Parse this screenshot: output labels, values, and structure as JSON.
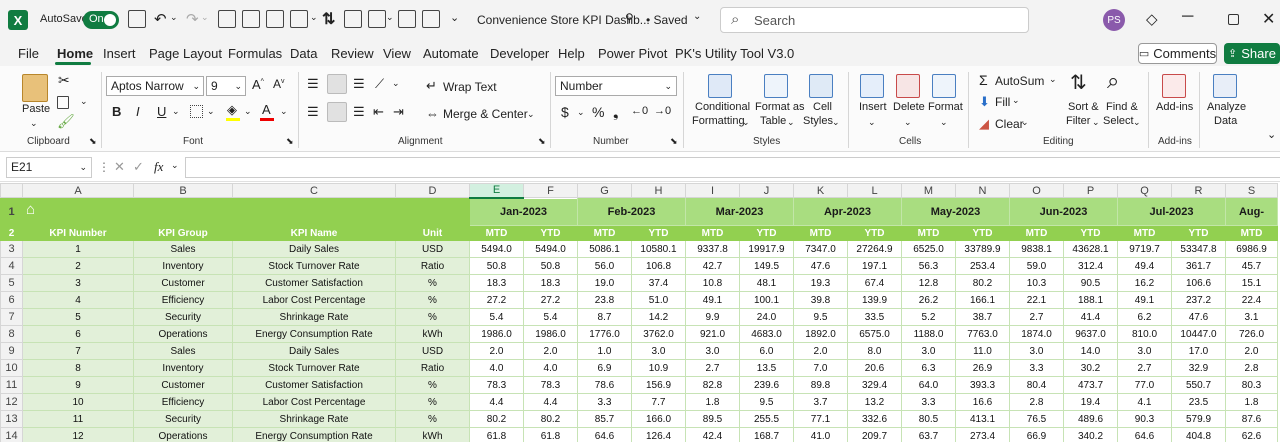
{
  "app": {
    "logo": "X",
    "autosave_label": "AutoSave",
    "toggle_state": "On",
    "doc_title": "Convenience Store KPI Dashb...",
    "saved_status": "• Saved",
    "search_placeholder": "Search",
    "avatar_initials": "PS"
  },
  "tabs": [
    "File",
    "Home",
    "Insert",
    "Page Layout",
    "Formulas",
    "Data",
    "Review",
    "View",
    "Automate",
    "Developer",
    "Help",
    "Power Pivot",
    "PK's Utility Tool V3.0"
  ],
  "comments_label": "Comments",
  "share_label": "Share",
  "ribbon": {
    "clipboard": {
      "paste": "Paste",
      "group": "Clipboard"
    },
    "font": {
      "name": "Aptos Narrow",
      "size": "9",
      "group": "Font"
    },
    "alignment": {
      "wrap": "Wrap Text",
      "merge": "Merge & Center",
      "group": "Alignment"
    },
    "number": {
      "format": "Number",
      "group": "Number"
    },
    "styles": {
      "cond1": "Conditional",
      "cond2": "Formatting",
      "fmt1": "Format as",
      "fmt2": "Table",
      "cell1": "Cell",
      "cell2": "Styles",
      "group": "Styles"
    },
    "cells": {
      "insert": "Insert",
      "delete": "Delete",
      "format": "Format",
      "group": "Cells"
    },
    "editing": {
      "autosum": "AutoSum",
      "fill": "Fill",
      "clear": "Clear",
      "sort1": "Sort &",
      "sort2": "Filter",
      "find1": "Find &",
      "find2": "Select",
      "group": "Editing"
    },
    "addins": {
      "label": "Add-ins",
      "group": "Add-ins"
    },
    "analyze": {
      "l1": "Analyze",
      "l2": "Data"
    }
  },
  "formula_bar": {
    "cell_ref": "E21",
    "fx": "fx",
    "value": ""
  },
  "grid": {
    "columns": [
      "A",
      "B",
      "C",
      "D",
      "E",
      "F",
      "G",
      "H",
      "I",
      "J",
      "K",
      "L",
      "M",
      "N",
      "O",
      "P",
      "Q",
      "R",
      "S"
    ],
    "selected_column": "E",
    "header_labels": [
      "KPI Number",
      "KPI Group",
      "KPI Name",
      "Unit"
    ],
    "months": [
      "Jan-2023",
      "Feb-2023",
      "Mar-2023",
      "Apr-2023",
      "May-2023",
      "Jun-2023",
      "Jul-2023",
      "Aug-"
    ],
    "sub_labels": [
      "MTD",
      "YTD"
    ],
    "row_numbers": [
      "1",
      "2",
      "3",
      "4",
      "5",
      "6",
      "7",
      "8",
      "9",
      "10",
      "11",
      "12",
      "13",
      "14"
    ],
    "rows": [
      [
        "1",
        "Sales",
        "Daily Sales",
        "USD",
        "5494.0",
        "5494.0",
        "5086.1",
        "10580.1",
        "9337.8",
        "19917.9",
        "7347.0",
        "27264.9",
        "6525.0",
        "33789.9",
        "9838.1",
        "43628.1",
        "9719.7",
        "53347.8",
        "6986.9"
      ],
      [
        "2",
        "Inventory",
        "Stock Turnover Rate",
        "Ratio",
        "50.8",
        "50.8",
        "56.0",
        "106.8",
        "42.7",
        "149.5",
        "47.6",
        "197.1",
        "56.3",
        "253.4",
        "59.0",
        "312.4",
        "49.4",
        "361.7",
        "45.7"
      ],
      [
        "3",
        "Customer",
        "Customer Satisfaction",
        "%",
        "18.3",
        "18.3",
        "19.0",
        "37.4",
        "10.8",
        "48.1",
        "19.3",
        "67.4",
        "12.8",
        "80.2",
        "10.3",
        "90.5",
        "16.2",
        "106.6",
        "15.1"
      ],
      [
        "4",
        "Efficiency",
        "Labor Cost Percentage",
        "%",
        "27.2",
        "27.2",
        "23.8",
        "51.0",
        "49.1",
        "100.1",
        "39.8",
        "139.9",
        "26.2",
        "166.1",
        "22.1",
        "188.1",
        "49.1",
        "237.2",
        "22.4"
      ],
      [
        "5",
        "Security",
        "Shrinkage Rate",
        "%",
        "5.4",
        "5.4",
        "8.7",
        "14.2",
        "9.9",
        "24.0",
        "9.5",
        "33.5",
        "5.2",
        "38.7",
        "2.7",
        "41.4",
        "6.2",
        "47.6",
        "3.1"
      ],
      [
        "6",
        "Operations",
        "Energy Consumption Rate",
        "kWh",
        "1986.0",
        "1986.0",
        "1776.0",
        "3762.0",
        "921.0",
        "4683.0",
        "1892.0",
        "6575.0",
        "1188.0",
        "7763.0",
        "1874.0",
        "9637.0",
        "810.0",
        "10447.0",
        "726.0"
      ],
      [
        "7",
        "Sales",
        "Daily Sales",
        "USD",
        "2.0",
        "2.0",
        "1.0",
        "3.0",
        "3.0",
        "6.0",
        "2.0",
        "8.0",
        "3.0",
        "11.0",
        "3.0",
        "14.0",
        "3.0",
        "17.0",
        "2.0"
      ],
      [
        "8",
        "Inventory",
        "Stock Turnover Rate",
        "Ratio",
        "4.0",
        "4.0",
        "6.9",
        "10.9",
        "2.7",
        "13.5",
        "7.0",
        "20.6",
        "6.3",
        "26.9",
        "3.3",
        "30.2",
        "2.7",
        "32.9",
        "2.8"
      ],
      [
        "9",
        "Customer",
        "Customer Satisfaction",
        "%",
        "78.3",
        "78.3",
        "78.6",
        "156.9",
        "82.8",
        "239.6",
        "89.8",
        "329.4",
        "64.0",
        "393.3",
        "80.4",
        "473.7",
        "77.0",
        "550.7",
        "80.3"
      ],
      [
        "10",
        "Efficiency",
        "Labor Cost Percentage",
        "%",
        "4.4",
        "4.4",
        "3.3",
        "7.7",
        "1.8",
        "9.5",
        "3.7",
        "13.2",
        "3.3",
        "16.6",
        "2.8",
        "19.4",
        "4.1",
        "23.5",
        "1.8"
      ],
      [
        "11",
        "Security",
        "Shrinkage Rate",
        "%",
        "80.2",
        "80.2",
        "85.7",
        "166.0",
        "89.5",
        "255.5",
        "77.1",
        "332.6",
        "80.5",
        "413.1",
        "76.5",
        "489.6",
        "90.3",
        "579.9",
        "87.6"
      ],
      [
        "12",
        "Operations",
        "Energy Consumption Rate",
        "kWh",
        "61.8",
        "61.8",
        "64.6",
        "126.4",
        "42.4",
        "168.7",
        "41.0",
        "209.7",
        "63.7",
        "273.4",
        "66.9",
        "340.2",
        "64.6",
        "404.8",
        "62.6"
      ]
    ]
  }
}
